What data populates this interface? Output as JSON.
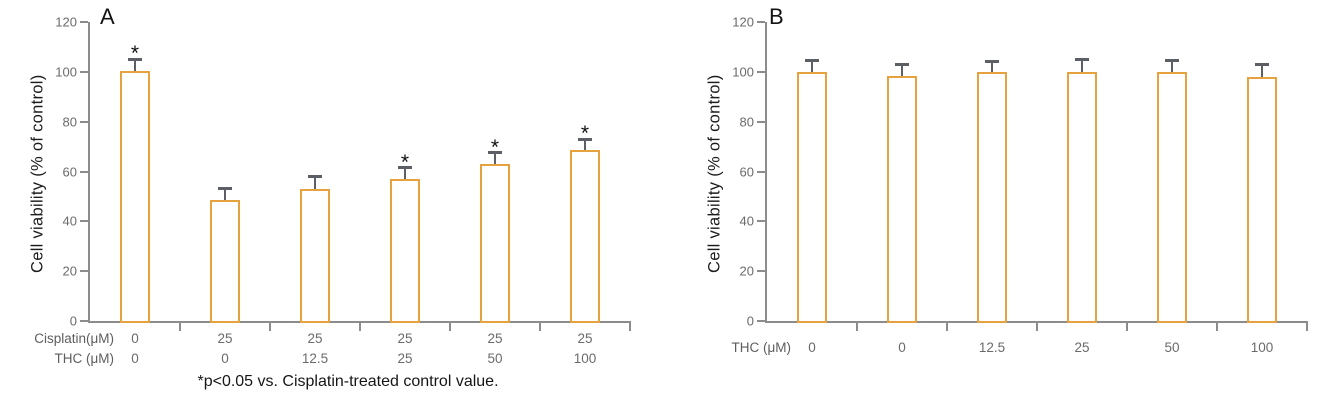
{
  "colors": {
    "bar_outline": "#E6A23E",
    "bar_fill": "#FFFFFF",
    "error_bar": "#5C6066",
    "axis": "#8C8C8C",
    "tick_label": "#6B6B6B",
    "row_label": "#5E5E5E",
    "text": "#161616"
  },
  "chart_data": [
    {
      "type": "bar",
      "panel_label": "A",
      "title": "",
      "ylabel": "Cell viability (% of control)",
      "xlabel": "",
      "ylim": [
        0,
        120
      ],
      "yticks": [
        0,
        20,
        40,
        60,
        80,
        100,
        120
      ],
      "grid": false,
      "legend": null,
      "x_rows": [
        {
          "label": "Cisplatin(μM)",
          "values": [
            "0",
            "25",
            "25",
            "25",
            "25",
            "25"
          ]
        },
        {
          "label": "THC (μM)",
          "values": [
            "0",
            "0",
            "12.5",
            "25",
            "50",
            "100"
          ]
        }
      ],
      "values": [
        100.5,
        48.5,
        53,
        57,
        63,
        68.5
      ],
      "errors": [
        4.5,
        4.5,
        5,
        4.5,
        4.5,
        4.5
      ],
      "significant": [
        true,
        false,
        false,
        true,
        true,
        true
      ],
      "sig_marker": "*",
      "footnote": "*p<0.05 vs. Cisplatin-treated control value."
    },
    {
      "type": "bar",
      "panel_label": "B",
      "title": "",
      "ylabel": "Cell viability (% of control)",
      "xlabel": "",
      "ylim": [
        0,
        120
      ],
      "yticks": [
        0,
        20,
        40,
        60,
        80,
        100,
        120
      ],
      "grid": false,
      "legend": null,
      "x_rows": [
        {
          "label": "THC (μM)",
          "values": [
            "0",
            "0",
            "12.5",
            "25",
            "50",
            "100"
          ]
        }
      ],
      "values": [
        100,
        98.5,
        100,
        100,
        100,
        98
      ],
      "errors": [
        4.5,
        4.5,
        4,
        5,
        4.5,
        5
      ],
      "significant": [
        false,
        false,
        false,
        false,
        false,
        false
      ],
      "sig_marker": "*",
      "footnote": ""
    }
  ]
}
